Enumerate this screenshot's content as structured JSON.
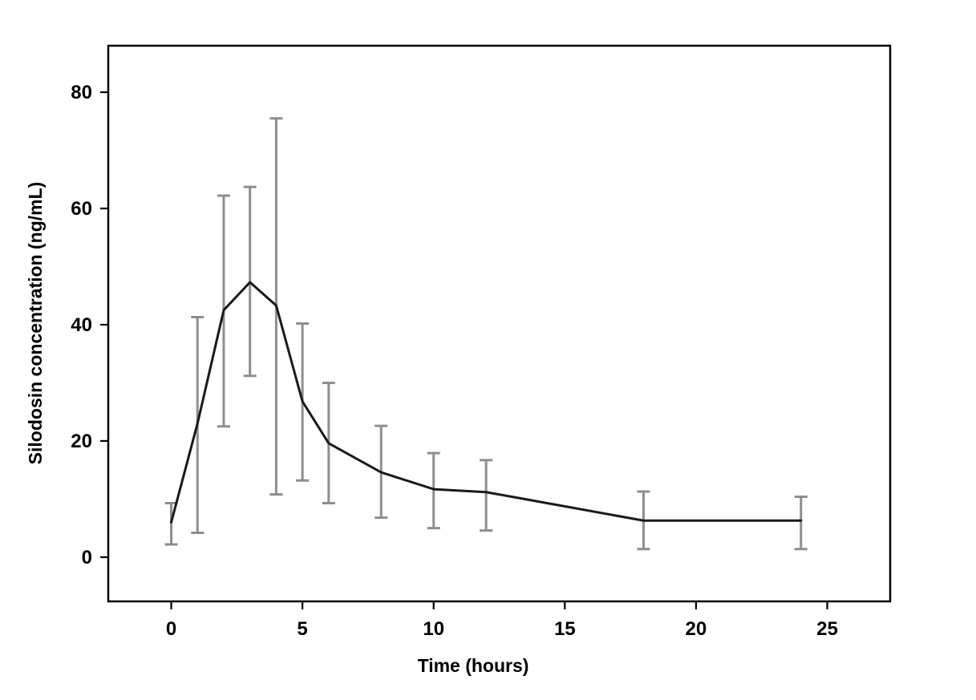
{
  "chart_data": {
    "type": "line",
    "title": "",
    "xlabel": "Time (hours)",
    "ylabel": "Silodosin concentration (ng/mL)",
    "x": [
      0,
      1,
      2,
      3,
      4,
      5,
      6,
      8,
      10,
      12,
      18,
      24
    ],
    "values": [
      6,
      23,
      42.5,
      47.3,
      43.3,
      26.8,
      19.6,
      14.6,
      11.7,
      11.2,
      6.3,
      6.3
    ],
    "upper": [
      9.3,
      41.3,
      62.2,
      63.7,
      75.5,
      40.2,
      30,
      22.6,
      17.9,
      16.7,
      11.3,
      10.4
    ],
    "lower": [
      2.2,
      4.2,
      22.5,
      31.2,
      10.8,
      13.2,
      9.3,
      6.8,
      5.0,
      4.6,
      1.4,
      1.4
    ],
    "x_ticks": [
      0,
      5,
      10,
      15,
      20,
      25
    ],
    "y_ticks": [
      0,
      20,
      40,
      60,
      80
    ],
    "x_range": [
      -2.4,
      27.4
    ],
    "y_range": [
      -7.6,
      88
    ],
    "grid": false,
    "legend": "none",
    "line_color": "#1a1a1a",
    "error_bar_color": "#8e8e8e",
    "axis_color": "#000000"
  }
}
